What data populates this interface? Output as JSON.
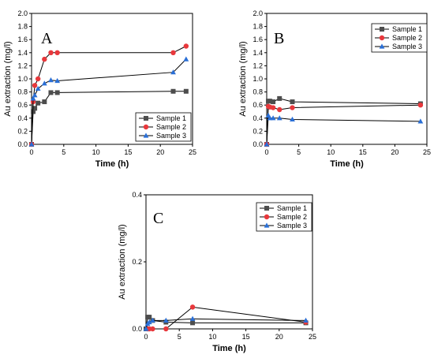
{
  "chart_data": [
    {
      "type": "line",
      "panel_label": "A",
      "xlabel": "Time (h)",
      "ylabel": "Au extraction (mg/l)",
      "xlim": [
        0,
        25
      ],
      "ylim": [
        0,
        2.0
      ],
      "xticks": [
        "0",
        "5",
        "10",
        "15",
        "20",
        "25"
      ],
      "yticks": [
        "0.0",
        "0.2",
        "0.4",
        "0.6",
        "0.8",
        "1.0",
        "1.2",
        "1.4",
        "1.6",
        "1.8",
        "2.0"
      ],
      "legend_position": "bottom-right",
      "series": [
        {
          "name": "Sample 1",
          "color": "#4d4d4d",
          "marker": "square",
          "x": [
            0,
            0.25,
            0.5,
            1,
            2,
            3,
            4,
            22,
            24
          ],
          "y": [
            0.0,
            0.5,
            0.55,
            0.63,
            0.65,
            0.79,
            0.79,
            0.81,
            0.81
          ]
        },
        {
          "name": "Sample 2",
          "color": "#e8383c",
          "marker": "circle",
          "x": [
            0,
            0.25,
            0.5,
            1,
            2,
            3,
            4,
            22,
            24
          ],
          "y": [
            0.0,
            0.65,
            0.9,
            1.0,
            1.3,
            1.4,
            1.4,
            1.4,
            1.5
          ]
        },
        {
          "name": "Sample 3",
          "color": "#2a6fd6",
          "marker": "triangle",
          "x": [
            0,
            0.25,
            0.5,
            1,
            2,
            3,
            4,
            22,
            24
          ],
          "y": [
            0.0,
            0.7,
            0.75,
            0.85,
            0.93,
            0.98,
            0.97,
            1.1,
            1.3
          ]
        }
      ]
    },
    {
      "type": "line",
      "panel_label": "B",
      "xlabel": "Time (h)",
      "ylabel": "Au extraction (mg/l)",
      "xlim": [
        0,
        25
      ],
      "ylim": [
        0,
        2.0
      ],
      "xticks": [
        "0",
        "5",
        "10",
        "15",
        "20",
        "25"
      ],
      "yticks": [
        "0.0",
        "0.2",
        "0.4",
        "0.6",
        "0.8",
        "1.0",
        "1.2",
        "1.4",
        "1.6",
        "1.8",
        "2.0"
      ],
      "legend_position": "top-right",
      "series": [
        {
          "name": "Sample 1",
          "color": "#4d4d4d",
          "marker": "square",
          "x": [
            0,
            0.25,
            0.5,
            1,
            2,
            4,
            24
          ],
          "y": [
            0.0,
            0.66,
            0.66,
            0.65,
            0.7,
            0.65,
            0.62
          ]
        },
        {
          "name": "Sample 2",
          "color": "#e8383c",
          "marker": "circle",
          "x": [
            0,
            0.25,
            0.5,
            1,
            2,
            4,
            24
          ],
          "y": [
            0.0,
            0.58,
            0.57,
            0.56,
            0.53,
            0.56,
            0.6
          ]
        },
        {
          "name": "Sample 3",
          "color": "#2a6fd6",
          "marker": "triangle",
          "x": [
            0,
            0.25,
            0.5,
            1,
            2,
            4,
            24
          ],
          "y": [
            0.0,
            0.44,
            0.4,
            0.4,
            0.4,
            0.38,
            0.35
          ]
        }
      ]
    },
    {
      "type": "line",
      "panel_label": "C",
      "xlabel": "Time (h)",
      "ylabel": "Au extraction (mg/l)",
      "xlim": [
        0,
        25
      ],
      "ylim": [
        0,
        0.4
      ],
      "xticks": [
        "0",
        "5",
        "10",
        "15",
        "20",
        "25"
      ],
      "yticks": [
        "0.0",
        "0.2",
        "0.4"
      ],
      "legend_position": "top-right",
      "series": [
        {
          "name": "Sample 1",
          "color": "#4d4d4d",
          "marker": "square",
          "x": [
            0,
            0.25,
            0.5,
            1,
            3,
            7,
            24
          ],
          "y": [
            0.0,
            0.035,
            0.035,
            0.025,
            0.02,
            0.018,
            0.018
          ]
        },
        {
          "name": "Sample 2",
          "color": "#e8383c",
          "marker": "circle",
          "x": [
            0.25,
            0.5,
            1,
            3,
            7,
            24
          ],
          "y": [
            0.0,
            0.0,
            0.0,
            0.0,
            0.065,
            0.02
          ]
        },
        {
          "name": "Sample 3",
          "color": "#2a6fd6",
          "marker": "triangle",
          "x": [
            0,
            0.25,
            0.5,
            1,
            3,
            7,
            24
          ],
          "y": [
            0.0,
            0.015,
            0.02,
            0.025,
            0.025,
            0.03,
            0.025
          ]
        }
      ]
    }
  ]
}
